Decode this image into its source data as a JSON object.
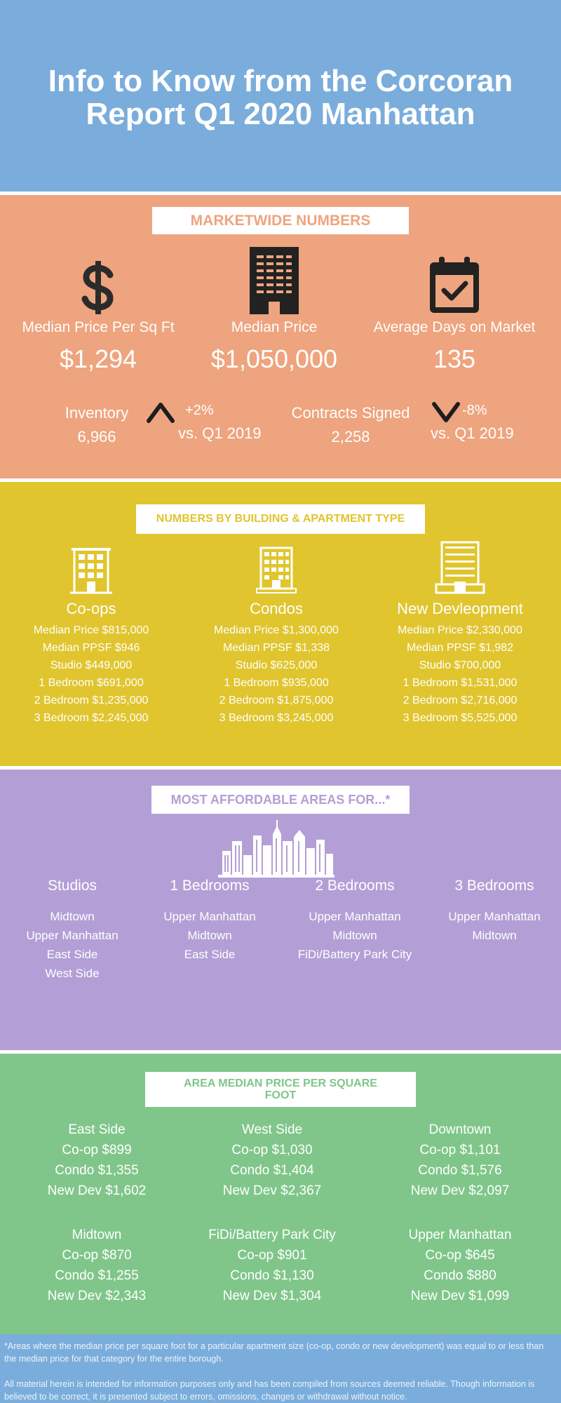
{
  "title": "Info to Know from the Corcoran Report Q1 2020 Manhattan",
  "colors": {
    "blue": "#7aaddb",
    "orange": "#eea47e",
    "yellow": "#e0c52e",
    "purple": "#b39fd6",
    "green": "#80c68a"
  },
  "marketwide": {
    "heading": "MARKETWIDE NUMBERS",
    "stats": [
      {
        "icon": "dollar-icon",
        "label": "Median Price Per Sq Ft",
        "value": "$1,294"
      },
      {
        "icon": "building-icon",
        "label": "Median Price",
        "value": "$1,050,000"
      },
      {
        "icon": "calendar-check-icon",
        "label": "Average Days on Market",
        "value": "135"
      }
    ],
    "inventory": {
      "label": "Inventory",
      "value": "6,966",
      "trend_icon": "chevron-up-icon",
      "change": "+2%",
      "compare": "vs. Q1 2019"
    },
    "contracts": {
      "label": "Contracts Signed",
      "value": "2,258",
      "trend_icon": "chevron-down-icon",
      "change": "-8%",
      "compare": "vs. Q1 2019"
    }
  },
  "building_types": {
    "heading": "NUMBERS BY BUILDING & APARTMENT TYPE",
    "types": [
      {
        "icon": "coop-building-icon",
        "name": "Co-ops",
        "lines": [
          "Median Price $815,000",
          "Median PPSF $946",
          "Studio $449,000",
          "1 Bedroom $691,000",
          "2 Bedroom $1,235,000",
          "3 Bedroom $2,245,000"
        ]
      },
      {
        "icon": "condo-building-icon",
        "name": "Condos",
        "lines": [
          "Median Price $1,300,000",
          "Median PPSF $1,338",
          "Studio $625,000",
          "1 Bedroom $935,000",
          "2 Bedroom $1,875,000",
          "3 Bedroom $3,245,000"
        ]
      },
      {
        "icon": "new-development-building-icon",
        "name": "New Devleopment",
        "lines": [
          "Median Price $2,330,000",
          "Median PPSF $1,982",
          "Studio $700,000",
          "1 Bedroom $1,531,000",
          "2 Bedroom $2,716,000",
          "3 Bedroom $5,525,000"
        ]
      }
    ]
  },
  "affordable": {
    "heading": "MOST AFFORDABLE AREAS FOR...*",
    "icon": "city-skyline-icon",
    "columns": [
      {
        "name": "Studios",
        "areas": [
          "Midtown",
          "Upper Manhattan",
          "East Side",
          "West Side"
        ]
      },
      {
        "name": "1 Bedrooms",
        "areas": [
          "Upper Manhattan",
          "Midtown",
          "East Side"
        ]
      },
      {
        "name": "2 Bedrooms",
        "areas": [
          "Upper Manhattan",
          "Midtown",
          "FiDi/Battery Park City"
        ]
      },
      {
        "name": "3 Bedrooms",
        "areas": [
          "Upper Manhattan",
          "Midtown"
        ]
      }
    ]
  },
  "area_ppsf": {
    "heading": "AREA MEDIAN PRICE PER SQUARE FOOT",
    "areas": [
      {
        "name": "East Side",
        "lines": [
          "Co-op $899",
          "Condo $1,355",
          "New Dev $1,602"
        ]
      },
      {
        "name": "West Side",
        "lines": [
          "Co-op $1,030",
          "Condo $1,404",
          "New Dev $2,367"
        ]
      },
      {
        "name": "Downtown",
        "lines": [
          "Co-op $1,101",
          "Condo $1,576",
          "New Dev $2,097"
        ]
      },
      {
        "name": "Midtown",
        "lines": [
          "Co-op $870",
          "Condo $1,255",
          "New Dev $2,343"
        ]
      },
      {
        "name": "FiDi/Battery Park City",
        "lines": [
          "Co-op $901",
          "Condo $1,130",
          "New Dev $1,304"
        ]
      },
      {
        "name": "Upper Manhattan",
        "lines": [
          "Co-op $645",
          "Condo $880",
          "New Dev $1,099"
        ]
      }
    ]
  },
  "footer": {
    "note": "*Areas where the median price per square foot for a particular apartment size (co-op, condo or new development) was equal to or less than the median price for that category for the entire borough.",
    "disclaimer": "All material herein is intended for information purposes only and has been compiled from sources deemed reliable. Though information is believed to be correct, it is presented subject to errors, omissions, changes or withdrawal without notice."
  }
}
